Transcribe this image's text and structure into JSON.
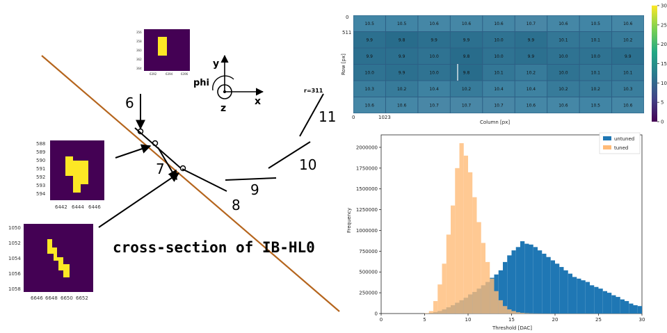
{
  "diagram": {
    "caption": "cross-section of IB-HL0",
    "axis_labels": {
      "y": "y",
      "phi": "phi",
      "z": "z",
      "x": "x"
    },
    "stave_numbers": [
      "6",
      "7",
      "8",
      "9",
      "10",
      "11"
    ],
    "r_label": "r=311",
    "insets": [
      {
        "y_ticks": [
          "356",
          "358",
          "360",
          "362",
          "364"
        ],
        "x_ticks": [
          "6392",
          "6394",
          "6396"
        ]
      },
      {
        "y_ticks": [
          "588",
          "589",
          "590",
          "591",
          "592",
          "593",
          "594"
        ],
        "x_ticks": [
          "6442",
          "6444",
          "6446"
        ]
      },
      {
        "y_ticks": [
          "1050",
          "1052",
          "1054",
          "1056",
          "1058"
        ],
        "x_ticks": [
          "6646",
          "6648",
          "6650",
          "6652"
        ]
      }
    ]
  },
  "colors": {
    "track": "#b5651d",
    "viridis_dark": "#440154",
    "viridis_yellow": "#fde725",
    "untuned": "#1f77b4",
    "tuned": "#ffbb78"
  },
  "chart_data": [
    {
      "type": "heatmap",
      "xlabel": "Column [px]",
      "ylabel": "Row [px]",
      "x_ticks": [
        "0",
        "1023"
      ],
      "y_ticks": [
        "0",
        "511"
      ],
      "colorbar_ticks": [
        "0",
        "5",
        "10",
        "15",
        "20",
        "25",
        "30"
      ],
      "colorbar_range": [
        0,
        30
      ],
      "cells": [
        [
          "10.5",
          "10.5",
          "10.6",
          "10.6",
          "10.6",
          "10.7",
          "10.6",
          "10.5",
          "10.6"
        ],
        [
          "9.9",
          "9.8",
          "9.9",
          "9.9",
          "10.0",
          "9.9",
          "10.1",
          "10.1",
          "10.2"
        ],
        [
          "9.9",
          "9.9",
          "10.0",
          "9.8",
          "10.0",
          "9.9",
          "10.0",
          "10.0",
          "9.9"
        ],
        [
          "10.0",
          "9.9",
          "10.0",
          "9.8",
          "10.1",
          "10.2",
          "10.0",
          "10.1",
          "10.1"
        ],
        [
          "10.3",
          "10.2",
          "10.4",
          "10.2",
          "10.4",
          "10.4",
          "10.2",
          "10.2",
          "10.3"
        ],
        [
          "10.6",
          "10.6",
          "10.7",
          "10.7",
          "10.7",
          "10.6",
          "10.6",
          "10.5",
          "10.6"
        ]
      ]
    },
    {
      "type": "bar",
      "xlabel": "Threshold [DAC]",
      "ylabel": "Frequency",
      "xlim": [
        0,
        30
      ],
      "ylim": [
        0,
        2150000
      ],
      "x_ticks": [
        "0",
        "5",
        "10",
        "15",
        "20",
        "25",
        "30"
      ],
      "y_ticks": [
        "0",
        "250000",
        "500000",
        "750000",
        "1000000",
        "1250000",
        "1500000",
        "1750000",
        "2000000"
      ],
      "legend": "top-right",
      "bin_width": 0.5,
      "series": [
        {
          "name": "untuned",
          "bin_starts": [
            5.0,
            5.5,
            6.0,
            6.5,
            7.0,
            7.5,
            8.0,
            8.5,
            9.0,
            9.5,
            10.0,
            10.5,
            11.0,
            11.5,
            12.0,
            12.5,
            13.0,
            13.5,
            14.0,
            14.5,
            15.0,
            15.5,
            16.0,
            16.5,
            17.0,
            17.5,
            18.0,
            18.5,
            19.0,
            19.5,
            20.0,
            20.5,
            21.0,
            21.5,
            22.0,
            22.5,
            23.0,
            23.5,
            24.0,
            24.5,
            25.0,
            25.5,
            26.0,
            26.5,
            27.0,
            27.5,
            28.0,
            28.5,
            29.0,
            29.5
          ],
          "values": [
            3000,
            8000,
            18000,
            30000,
            50000,
            75000,
            100000,
            130000,
            160000,
            190000,
            230000,
            260000,
            300000,
            340000,
            380000,
            430000,
            470000,
            520000,
            620000,
            700000,
            760000,
            800000,
            870000,
            840000,
            830000,
            800000,
            760000,
            720000,
            680000,
            640000,
            600000,
            560000,
            520000,
            480000,
            440000,
            420000,
            400000,
            380000,
            340000,
            320000,
            300000,
            270000,
            250000,
            220000,
            200000,
            170000,
            150000,
            120000,
            100000,
            90000
          ]
        },
        {
          "name": "tuned",
          "bin_starts": [
            5.0,
            5.5,
            6.0,
            6.5,
            7.0,
            7.5,
            8.0,
            8.5,
            9.0,
            9.5,
            10.0,
            10.5,
            11.0,
            11.5,
            12.0,
            12.5,
            13.0,
            13.5,
            14.0,
            14.5,
            15.0,
            15.5,
            16.0,
            16.5,
            17.0,
            17.5,
            18.0,
            18.5,
            19.0,
            19.5,
            20.0
          ],
          "values": [
            5000,
            30000,
            150000,
            350000,
            600000,
            950000,
            1300000,
            1750000,
            2050000,
            1900000,
            1700000,
            1400000,
            1100000,
            850000,
            620000,
            420000,
            270000,
            160000,
            90000,
            50000,
            30000,
            15000,
            8000,
            4000,
            2000,
            1000,
            500,
            200,
            0,
            0,
            0
          ]
        }
      ]
    }
  ]
}
